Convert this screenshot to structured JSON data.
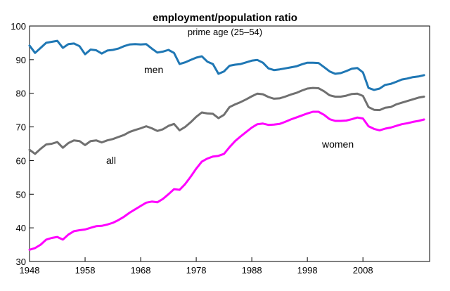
{
  "chart_data": {
    "type": "line",
    "title": "employment/population ratio",
    "subtitle": "prime age (25–54)",
    "xlabel": "",
    "ylabel": "",
    "xlim": [
      1948,
      2020
    ],
    "ylim": [
      30,
      100
    ],
    "x_ticks": [
      1948,
      1958,
      1968,
      1978,
      1988,
      1998,
      2008
    ],
    "y_ticks": [
      30,
      40,
      50,
      60,
      70,
      80,
      90,
      100
    ],
    "grid": false,
    "legend": "none",
    "series_labels": {
      "men": "men",
      "all": "all",
      "women": "women"
    },
    "series": [
      {
        "name": "men",
        "color": "#1f77b4",
        "x": [
          1948,
          1949,
          1950,
          1951,
          1952,
          1953,
          1954,
          1955,
          1956,
          1957,
          1958,
          1959,
          1960,
          1961,
          1962,
          1963,
          1964,
          1965,
          1966,
          1967,
          1968,
          1969,
          1970,
          1971,
          1972,
          1973,
          1974,
          1975,
          1976,
          1977,
          1978,
          1979,
          1980,
          1981,
          1982,
          1983,
          1984,
          1985,
          1986,
          1987,
          1988,
          1989,
          1990,
          1991,
          1992,
          1993,
          1994,
          1995,
          1996,
          1997,
          1998,
          1999,
          2000,
          2001,
          2002,
          2003,
          2004,
          2005,
          2006,
          2007,
          2008,
          2009,
          2010,
          2011,
          2012,
          2013,
          2014,
          2015,
          2016,
          2017,
          2018,
          2019
        ],
        "values": [
          94.2,
          92.0,
          93.5,
          95.0,
          95.3,
          95.6,
          93.5,
          94.6,
          94.8,
          94.0,
          91.6,
          93.0,
          92.8,
          91.8,
          92.7,
          92.9,
          93.3,
          94.0,
          94.5,
          94.6,
          94.5,
          94.6,
          93.3,
          92.1,
          92.4,
          92.9,
          92.0,
          88.7,
          89.2,
          89.9,
          90.6,
          91.0,
          89.4,
          88.7,
          85.8,
          86.5,
          88.2,
          88.5,
          88.7,
          89.2,
          89.7,
          89.9,
          89.1,
          87.4,
          86.9,
          87.1,
          87.4,
          87.7,
          88.0,
          88.6,
          89.1,
          89.1,
          89.0,
          87.8,
          86.5,
          85.8,
          86.0,
          86.6,
          87.3,
          87.5,
          86.2,
          81.6,
          81.0,
          81.4,
          82.5,
          82.8,
          83.4,
          84.1,
          84.4,
          84.8,
          85.0,
          85.4
        ]
      },
      {
        "name": "all",
        "color": "#707070",
        "x": [
          1948,
          1949,
          1950,
          1951,
          1952,
          1953,
          1954,
          1955,
          1956,
          1957,
          1958,
          1959,
          1960,
          1961,
          1962,
          1963,
          1964,
          1965,
          1966,
          1967,
          1968,
          1969,
          1970,
          1971,
          1972,
          1973,
          1974,
          1975,
          1976,
          1977,
          1978,
          1979,
          1980,
          1981,
          1982,
          1983,
          1984,
          1985,
          1986,
          1987,
          1988,
          1989,
          1990,
          1991,
          1992,
          1993,
          1994,
          1995,
          1996,
          1997,
          1998,
          1999,
          2000,
          2001,
          2002,
          2003,
          2004,
          2005,
          2006,
          2007,
          2008,
          2009,
          2010,
          2011,
          2012,
          2013,
          2014,
          2015,
          2016,
          2017,
          2018,
          2019
        ],
        "values": [
          63.2,
          62.0,
          63.5,
          64.8,
          65.0,
          65.5,
          63.8,
          65.2,
          66.0,
          65.8,
          64.6,
          65.8,
          66.0,
          65.4,
          66.0,
          66.4,
          67.0,
          67.6,
          68.5,
          69.1,
          69.6,
          70.2,
          69.6,
          68.8,
          69.3,
          70.3,
          70.9,
          69.0,
          70.0,
          71.4,
          73.0,
          74.3,
          74.0,
          73.9,
          72.6,
          73.6,
          75.9,
          76.7,
          77.4,
          78.2,
          79.1,
          79.9,
          79.7,
          78.9,
          78.4,
          78.5,
          79.0,
          79.6,
          80.1,
          80.8,
          81.4,
          81.6,
          81.5,
          80.6,
          79.4,
          79.0,
          79.0,
          79.3,
          79.8,
          79.9,
          79.2,
          75.9,
          75.1,
          75.0,
          75.7,
          75.9,
          76.7,
          77.2,
          77.7,
          78.2,
          78.7,
          79.0
        ]
      },
      {
        "name": "women",
        "color": "#ff00ff",
        "x": [
          1948,
          1949,
          1950,
          1951,
          1952,
          1953,
          1954,
          1955,
          1956,
          1957,
          1958,
          1959,
          1960,
          1961,
          1962,
          1963,
          1964,
          1965,
          1966,
          1967,
          1968,
          1969,
          1970,
          1971,
          1972,
          1973,
          1974,
          1975,
          1976,
          1977,
          1978,
          1979,
          1980,
          1981,
          1982,
          1983,
          1984,
          1985,
          1986,
          1987,
          1988,
          1989,
          1990,
          1991,
          1992,
          1993,
          1994,
          1995,
          1996,
          1997,
          1998,
          1999,
          2000,
          2001,
          2002,
          2003,
          2004,
          2005,
          2006,
          2007,
          2008,
          2009,
          2010,
          2011,
          2012,
          2013,
          2014,
          2015,
          2016,
          2017,
          2018,
          2019
        ],
        "values": [
          33.5,
          34.0,
          35.0,
          36.5,
          37.0,
          37.3,
          36.5,
          38.0,
          39.0,
          39.3,
          39.5,
          40.0,
          40.5,
          40.6,
          41.0,
          41.5,
          42.3,
          43.3,
          44.5,
          45.5,
          46.5,
          47.5,
          47.8,
          47.6,
          48.6,
          50.0,
          51.5,
          51.3,
          53.0,
          55.2,
          57.6,
          59.7,
          60.6,
          61.2,
          61.4,
          62.0,
          64.0,
          65.8,
          67.2,
          68.5,
          69.8,
          70.8,
          71.0,
          70.6,
          70.7,
          70.9,
          71.5,
          72.2,
          72.8,
          73.4,
          74.0,
          74.5,
          74.5,
          73.6,
          72.3,
          71.8,
          71.8,
          71.9,
          72.3,
          72.8,
          72.5,
          70.2,
          69.4,
          69.0,
          69.5,
          69.8,
          70.3,
          70.8,
          71.1,
          71.5,
          71.8,
          72.2
        ]
      }
    ]
  }
}
